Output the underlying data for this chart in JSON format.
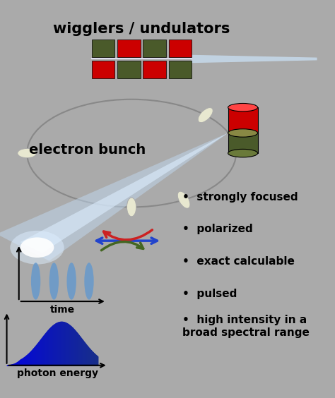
{
  "bg_color": "#aaaaaa",
  "title": "wigglers / undulators",
  "title_fontsize": 15,
  "title_fontweight": "bold",
  "label_electron_bunch": "electron bunch",
  "label_electron_fontsize": 14,
  "label_electron_fontweight": "bold",
  "bullet_points": [
    "strongly focused",
    "polarized",
    "exact calculable",
    "pulsed",
    "high intensity in a\nbroad spectral range"
  ],
  "bullet_fontsize": 11,
  "bullet_fontweight": "bold",
  "label_time": "time",
  "label_photon_energy": "photon energy",
  "label_fontsize": 10,
  "label_fontweight": "bold",
  "magnet_red": "#cc0000",
  "magnet_green": "#4a5a2a",
  "ring_color": "#888888",
  "beam_color_start": "#ffffff",
  "beam_color_end": "#aaccff"
}
